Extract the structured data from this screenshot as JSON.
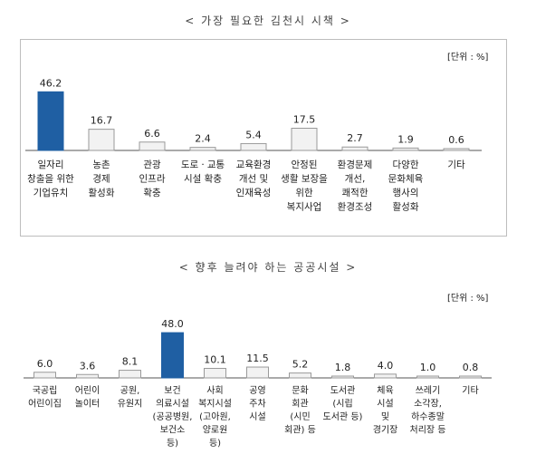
{
  "chart_data": [
    {
      "type": "bar",
      "title": "< 가장 필요한 김천시 시책 >",
      "unit": "[단위 : %]",
      "categories": [
        [
          "일자리",
          "창출을 위한",
          "기업유치"
        ],
        [
          "농촌",
          "경제",
          "활성화"
        ],
        [
          "관광",
          "인프라",
          "확충"
        ],
        [
          "도로ㆍ교통",
          "시설 확충"
        ],
        [
          "교육환경",
          "개선 및",
          "인재육성"
        ],
        [
          "안정된",
          "생활 보장을",
          "위한",
          "복지사업"
        ],
        [
          "환경문제",
          "개선,",
          "쾌적한",
          "환경조성"
        ],
        [
          "다양한",
          "문화체육",
          "행사의",
          "활성화"
        ],
        [
          "기타"
        ]
      ],
      "values": [
        46.2,
        16.7,
        6.6,
        2.4,
        5.4,
        17.5,
        2.7,
        1.9,
        0.6
      ],
      "value_labels": [
        "46.2",
        "16.7",
        "6.6",
        "2.4",
        "5.4",
        "17.5",
        "2.7",
        "1.9",
        "0.6"
      ],
      "highlight_index": 0,
      "ylim": [
        0,
        50
      ]
    },
    {
      "type": "bar",
      "title": "< 향후 늘려야 하는 공공시설 >",
      "unit": "[단위 : %]",
      "categories": [
        [
          "국공립",
          "어린이집"
        ],
        [
          "어린이",
          "놀이터"
        ],
        [
          "공원,",
          "유원지"
        ],
        [
          "보건",
          "의료시설",
          "(공공병원,",
          "보건소",
          "등)"
        ],
        [
          "사회",
          "복지시설",
          "(고아원,",
          "양로원",
          "등)"
        ],
        [
          "공영",
          "주차",
          "시설"
        ],
        [
          "문화",
          "회관",
          "(시민",
          "회관) 등"
        ],
        [
          "도서관",
          "(시립",
          "도서관 등)"
        ],
        [
          "체육",
          "시설",
          "및",
          "경기장"
        ],
        [
          "쓰레기",
          "소각장,",
          "하수종말",
          "처리장 등"
        ],
        [
          "기타"
        ]
      ],
      "values": [
        6.0,
        3.6,
        8.1,
        48.0,
        10.1,
        11.5,
        5.2,
        1.8,
        4.0,
        1.0,
        0.8
      ],
      "value_labels": [
        "6.0",
        "3.6",
        "8.1",
        "48.0",
        "10.1",
        "11.5",
        "5.2",
        "1.8",
        "4.0",
        "1.0",
        "0.8"
      ],
      "highlight_index": 3,
      "ylim": [
        0,
        50
      ]
    }
  ],
  "colors": {
    "highlight": "#1f5fa3",
    "bar": "#f2f2f2",
    "bar_stroke": "#9a9a9a",
    "axis": "#555555"
  }
}
